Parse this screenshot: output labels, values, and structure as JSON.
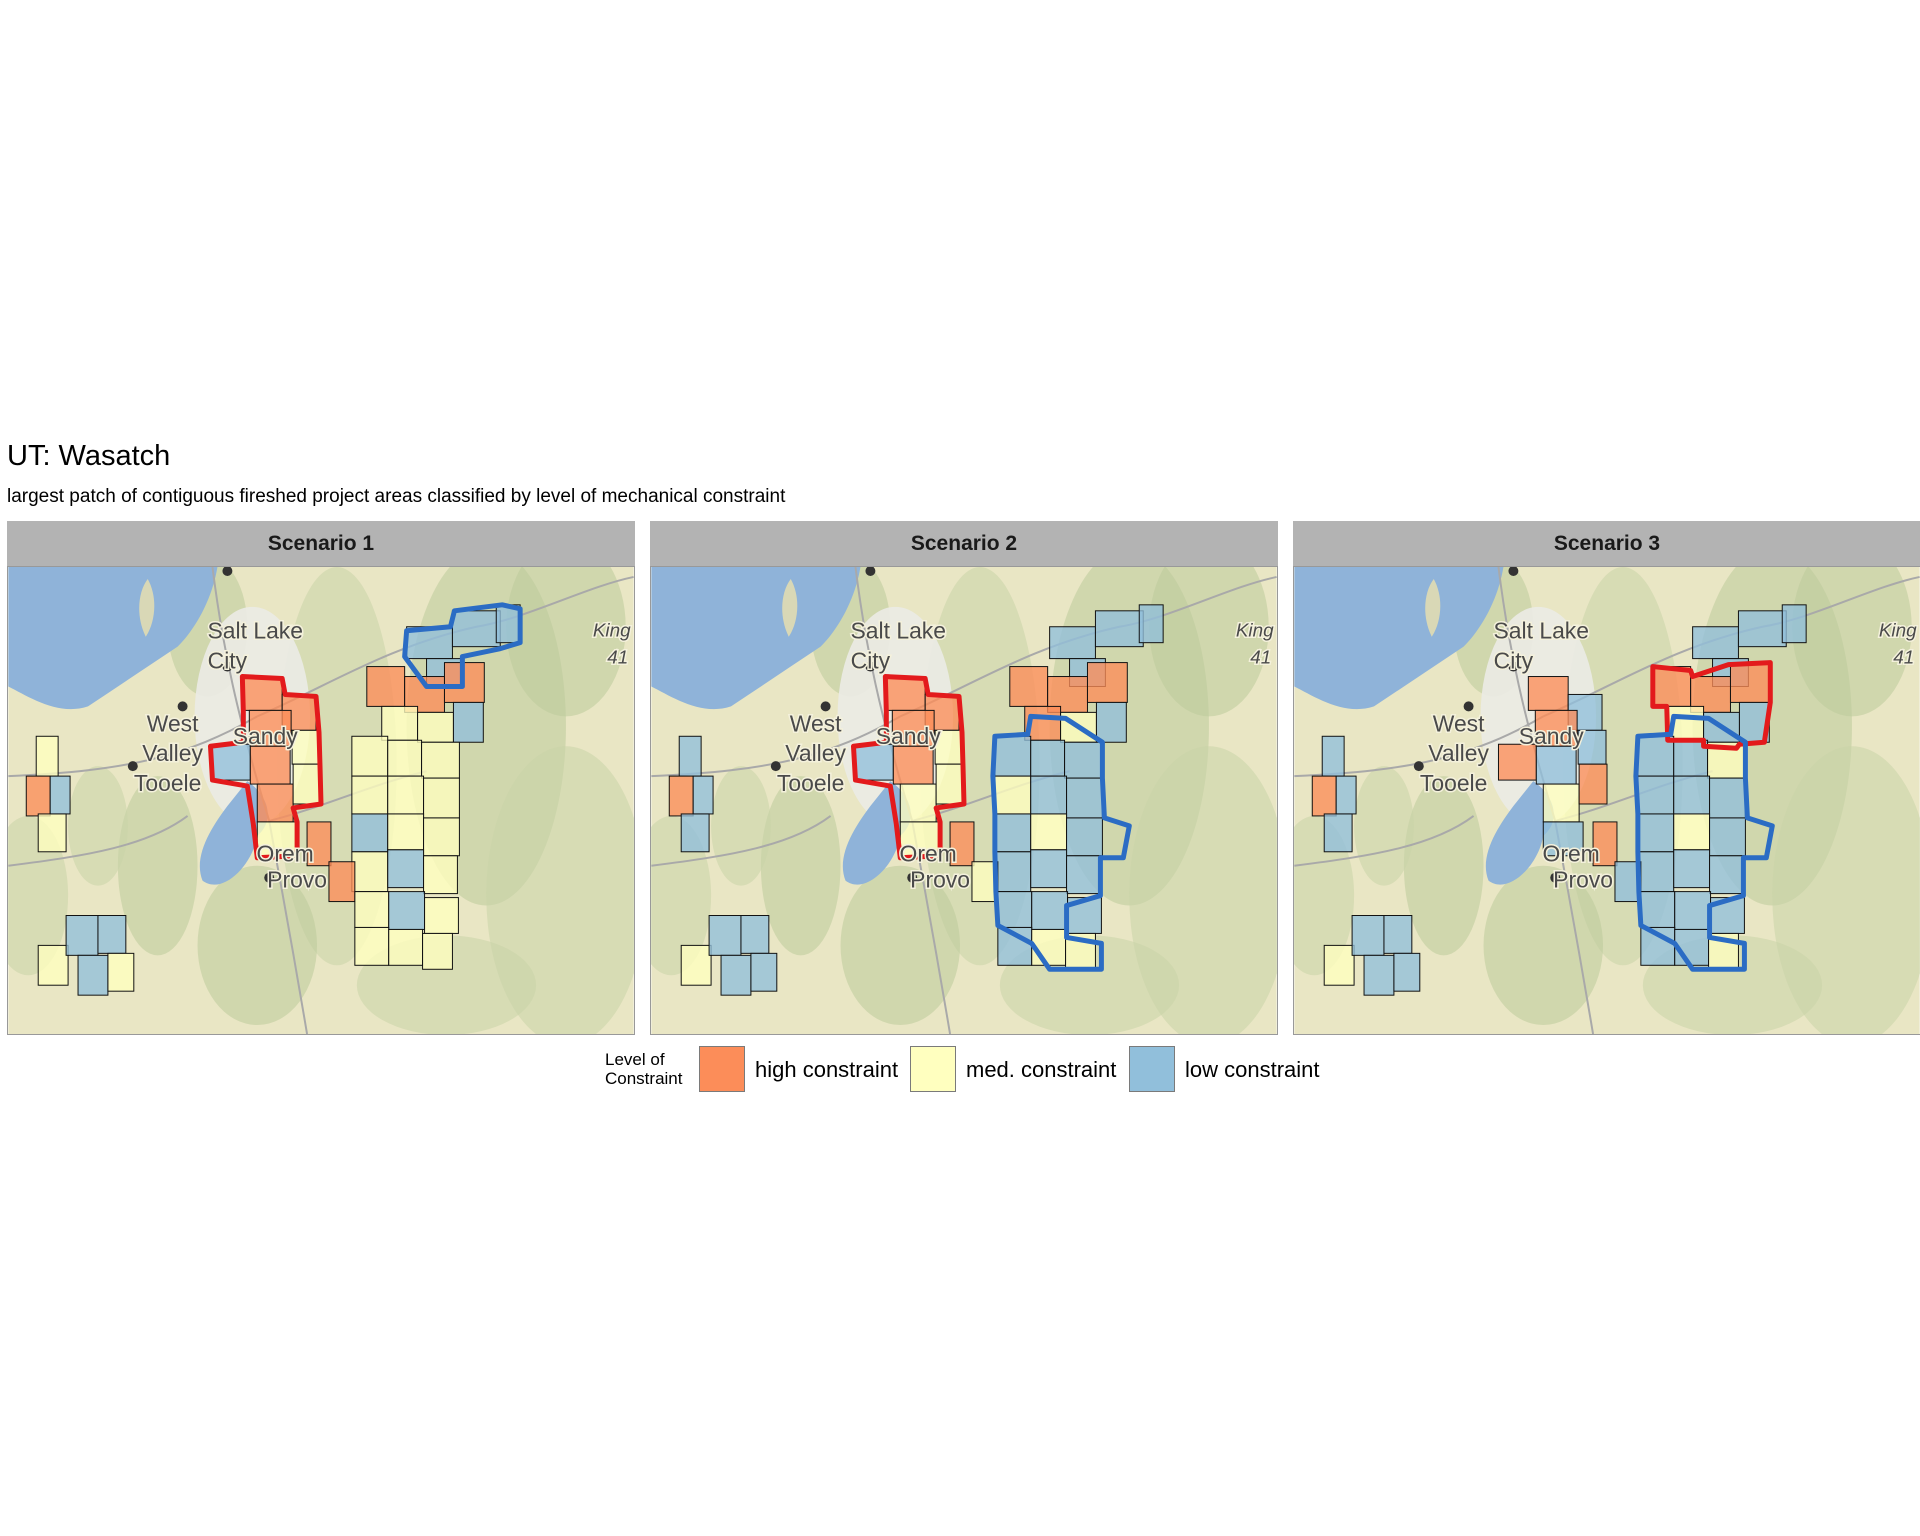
{
  "title": "UT: Wasatch",
  "subtitle": "largest patch of contiguous fireshed project areas classified by level of mechanical constraint",
  "colors": {
    "high": "#fc8d59",
    "med": "#ffffbf",
    "low": "#91bfdb",
    "outline_high": "#e31a1c",
    "outline_low": "#2b6cc4",
    "water": "#8fb3d9",
    "terrain": "#e9e6c4",
    "strip": "#b3b3b3"
  },
  "city_labels": {
    "salt_lake": "Salt Lake",
    "city": "City",
    "west": "West",
    "valley": "Valley",
    "tooele": "Tooele",
    "orem": "Orem",
    "provo": "Provo",
    "sandy": "Sandy",
    "king": "King",
    "peak": "41"
  },
  "panels": [
    {
      "strip": "Scenario 1",
      "areas": {
        "far_west": [
          "med",
          "high",
          "low",
          "med"
        ],
        "sw_cluster": [
          "med",
          "low",
          "low",
          "low",
          "med"
        ],
        "slc_east": [
          "high",
          "high",
          "med",
          "high",
          "low",
          "high",
          "high",
          "med",
          "med"
        ],
        "north_east": [
          "low",
          "low",
          "low",
          "low"
        ],
        "east_upper": [
          "high",
          "high",
          "high",
          "med",
          "med",
          "low"
        ],
        "east_main": [
          "med",
          "med",
          "med",
          "med",
          "med",
          "med",
          "low",
          "med",
          "med",
          "med",
          "low",
          "med"
        ],
        "east_south": [
          "high",
          "high",
          "med",
          "low",
          "med",
          "med",
          "med",
          "med"
        ]
      },
      "highlights": [
        {
          "level": "high",
          "target": "slc_east"
        },
        {
          "level": "low",
          "target": "north_east"
        }
      ]
    },
    {
      "strip": "Scenario 2",
      "areas": {
        "far_west": [
          "low",
          "high",
          "low",
          "low"
        ],
        "sw_cluster": [
          "med",
          "low",
          "low",
          "low",
          "low"
        ],
        "slc_east": [
          "high",
          "high",
          "med",
          "high",
          "low",
          "high",
          "med",
          "med",
          "med"
        ],
        "north_east": [
          "low",
          "low",
          "low",
          "low"
        ],
        "east_upper": [
          "high",
          "high",
          "high",
          "high",
          "med",
          "low"
        ],
        "east_main": [
          "low",
          "low",
          "low",
          "med",
          "low",
          "low",
          "low",
          "med",
          "low",
          "low",
          "low",
          "low"
        ],
        "east_south": [
          "high",
          "med",
          "low",
          "low",
          "low",
          "low",
          "med",
          "med"
        ]
      },
      "highlights": [
        {
          "level": "high",
          "target": "slc_east"
        },
        {
          "level": "low",
          "target": "east_main"
        }
      ]
    },
    {
      "strip": "Scenario 3",
      "areas": {
        "far_west": [
          "low",
          "high",
          "low",
          "low"
        ],
        "sw_cluster": [
          "med",
          "low",
          "low",
          "low",
          "low"
        ],
        "slc_east": [
          "high",
          "low",
          "low",
          "high",
          "high",
          "low",
          "med",
          "high",
          "low"
        ],
        "north_east": [
          "low",
          "low",
          "low",
          "low"
        ],
        "east_upper": [
          "high",
          "high",
          "high",
          "med",
          "low",
          "low"
        ],
        "east_main": [
          "low",
          "low",
          "med",
          "low",
          "low",
          "low",
          "low",
          "med",
          "low",
          "low",
          "low",
          "low"
        ],
        "east_south": [
          "high",
          "low",
          "low",
          "low",
          "low",
          "low",
          "low",
          "med"
        ]
      },
      "highlights": [
        {
          "level": "high",
          "target": "east_upper"
        },
        {
          "level": "low",
          "target": "east_main"
        }
      ]
    }
  ],
  "legend": {
    "title_line1": "Level of",
    "title_line2": "Constraint",
    "items": [
      {
        "key": "high",
        "label": "high constraint"
      },
      {
        "key": "med",
        "label": "med. constraint"
      },
      {
        "key": "low",
        "label": "low constraint"
      }
    ]
  }
}
